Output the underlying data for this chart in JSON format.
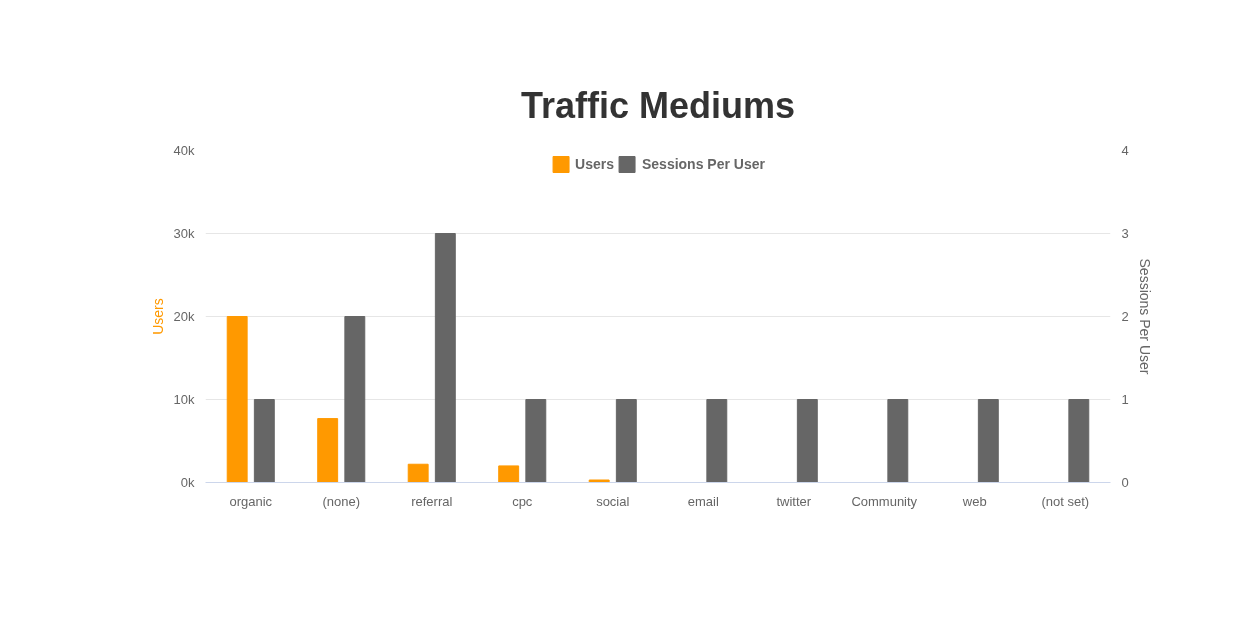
{
  "chart_data": {
    "type": "bar",
    "title": "Traffic Mediums",
    "ylabel": "Users",
    "y2label": "Sessions Per User",
    "categories": [
      "organic",
      "(none)",
      "referral",
      "cpc",
      "social",
      "email",
      "twitter",
      "Community",
      "web",
      "(not set)"
    ],
    "series": [
      {
        "name": "Users",
        "color": "#ff9900",
        "values": [
          20000,
          7700,
          2200,
          2000,
          300,
          0,
          0,
          0,
          0,
          0
        ]
      },
      {
        "name": "Sessions Per User",
        "color": "#666666",
        "axis": "y2",
        "values": [
          1,
          2,
          3,
          1,
          1,
          1,
          1,
          1,
          1,
          1
        ]
      }
    ],
    "ylim": [
      0,
      40000
    ],
    "yticks": [
      {
        "value": 0,
        "label": "0k"
      },
      {
        "value": 10000,
        "label": "10k"
      },
      {
        "value": 20000,
        "label": "20k"
      },
      {
        "value": 30000,
        "label": "30k"
      },
      {
        "value": 40000,
        "label": "40k"
      }
    ],
    "y2lim": [
      0,
      4
    ],
    "y2ticks": [
      0,
      1,
      2,
      3,
      4
    ],
    "grid": "y",
    "legend": "top"
  }
}
